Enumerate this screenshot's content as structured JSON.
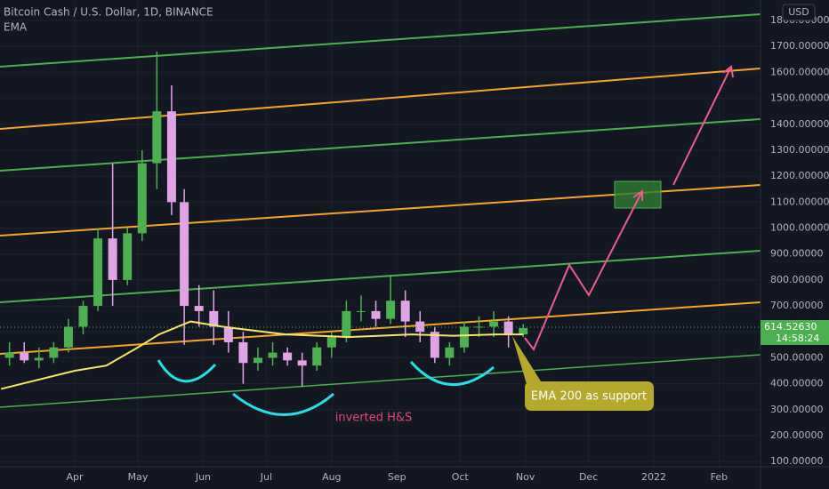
{
  "chart_data": {
    "type": "candlestick",
    "title": "Bitcoin Cash / U.S. Dollar, 1D, BINANCE",
    "indicator": "EMA",
    "currency": "USD",
    "last_price": {
      "value": 614.5263,
      "label": "614.52630"
    },
    "countdown": "14:58:24",
    "annotations": [
      "inverted H&S",
      "EMA 200 as support"
    ],
    "xlim": [
      -35.5,
      325.7
    ],
    "xticks": [
      {
        "value": 0,
        "label": "Apr"
      },
      {
        "value": 30,
        "label": "May"
      },
      {
        "value": 61,
        "label": "Jun"
      },
      {
        "value": 91,
        "label": "Jul"
      },
      {
        "value": 122,
        "label": "Aug"
      },
      {
        "value": 153,
        "label": "Sep"
      },
      {
        "value": 183,
        "label": "Oct"
      },
      {
        "value": 214,
        "label": "Nov"
      },
      {
        "value": 244,
        "label": "Dec"
      },
      {
        "value": 275,
        "label": "2022"
      },
      {
        "value": 306,
        "label": "Feb"
      }
    ],
    "ylim": [
      80,
      1879
    ],
    "yticks": [
      {
        "value": 100,
        "label": "100.00000"
      },
      {
        "value": 200,
        "label": "200.00000"
      },
      {
        "value": 300,
        "label": "300.00000"
      },
      {
        "value": 400,
        "label": "400.00000"
      },
      {
        "value": 500,
        "label": "500.00000"
      },
      {
        "value": 600,
        "label": "600.00000"
      },
      {
        "value": 700,
        "label": "700.00000"
      },
      {
        "value": 800,
        "label": "800.00000"
      },
      {
        "value": 900,
        "label": "900.00000"
      },
      {
        "value": 1000,
        "label": "1000.00000"
      },
      {
        "value": 1100,
        "label": "1100.00000"
      },
      {
        "value": 1200,
        "label": "1200.00000"
      },
      {
        "value": 1300,
        "label": "1300.00000"
      },
      {
        "value": 1400,
        "label": "1400.00000"
      },
      {
        "value": 1500,
        "label": "1500.00000"
      },
      {
        "value": 1600,
        "label": "1600.00000"
      },
      {
        "value": 1700,
        "label": "1700.00000"
      },
      {
        "value": 1800,
        "label": "1800.00000"
      }
    ],
    "up_color": "#4caf50",
    "down_color": "#e1a3e6",
    "x": [
      -31,
      -24,
      -17,
      -10,
      -3,
      4,
      11,
      18,
      25,
      32,
      39,
      46,
      52,
      59,
      66,
      73,
      80,
      87,
      94,
      101,
      108,
      115,
      122,
      129,
      136,
      143,
      150,
      157,
      164,
      171,
      178,
      185,
      192,
      199,
      206,
      213
    ],
    "open": [
      500,
      520,
      490,
      500,
      540,
      620,
      700,
      960,
      800,
      980,
      1250,
      1450,
      1100,
      700,
      680,
      620,
      560,
      480,
      500,
      520,
      490,
      470,
      540,
      580,
      680,
      680,
      650,
      720,
      640,
      600,
      500,
      540,
      620,
      620,
      640,
      590
    ],
    "high": [
      560,
      560,
      540,
      560,
      650,
      720,
      1000,
      1250,
      1000,
      1300,
      1680,
      1550,
      1150,
      780,
      760,
      680,
      600,
      540,
      560,
      540,
      520,
      560,
      600,
      720,
      740,
      720,
      820,
      760,
      680,
      620,
      560,
      640,
      660,
      680,
      660,
      630
    ],
    "low": [
      470,
      480,
      460,
      480,
      520,
      590,
      680,
      700,
      780,
      950,
      1150,
      1050,
      550,
      620,
      550,
      520,
      400,
      450,
      470,
      470,
      390,
      450,
      500,
      560,
      640,
      620,
      630,
      580,
      560,
      480,
      470,
      520,
      580,
      580,
      540,
      580
    ],
    "close": [
      520,
      490,
      500,
      540,
      620,
      700,
      960,
      800,
      980,
      1250,
      1450,
      1100,
      700,
      680,
      620,
      560,
      480,
      500,
      520,
      490,
      470,
      540,
      580,
      680,
      680,
      650,
      720,
      640,
      600,
      500,
      540,
      620,
      620,
      640,
      590,
      614.5263
    ],
    "ema": {
      "color": "#f5e66b",
      "x": [
        -35,
        0,
        15,
        30,
        40,
        55,
        70,
        100,
        130,
        160,
        180,
        200,
        213
      ],
      "values": [
        380,
        450,
        470,
        540,
        590,
        640,
        620,
        590,
        580,
        590,
        585,
        590,
        590
      ]
    }
  }
}
